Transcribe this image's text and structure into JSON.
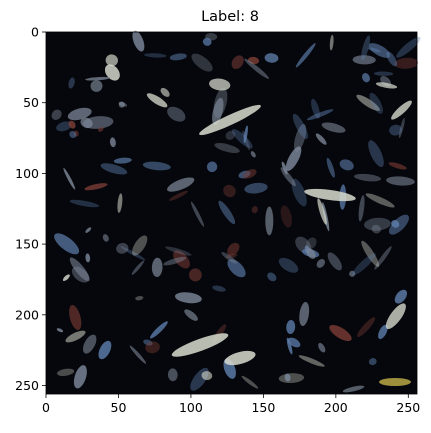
{
  "chart_data": {
    "type": "heatmap",
    "title": "Label: 8",
    "xlabel": "",
    "ylabel": "",
    "xlim": [
      0,
      256
    ],
    "ylim": [
      256,
      0
    ],
    "x_ticks": [
      0,
      50,
      100,
      150,
      200,
      250
    ],
    "y_ticks": [
      0,
      50,
      100,
      150,
      200,
      250
    ],
    "x_tick_labels": [
      "0",
      "50",
      "100",
      "150",
      "200",
      "250"
    ],
    "y_tick_labels": [
      "0",
      "50",
      "100",
      "150",
      "200",
      "250"
    ],
    "image_size": [
      256,
      256
    ],
    "image_description": "dark textured image of scattered leaves and debris in blue, grey, white and reddish-brown tones",
    "colors": {
      "background": "#05070c",
      "leaf_light": "#d8dccf",
      "leaf_blue": "#5f7fae",
      "leaf_red": "#7a3b35",
      "leaf_grey": "#7c8697",
      "leaf_gold": "#c4b24a",
      "axis": "#000000"
    }
  }
}
